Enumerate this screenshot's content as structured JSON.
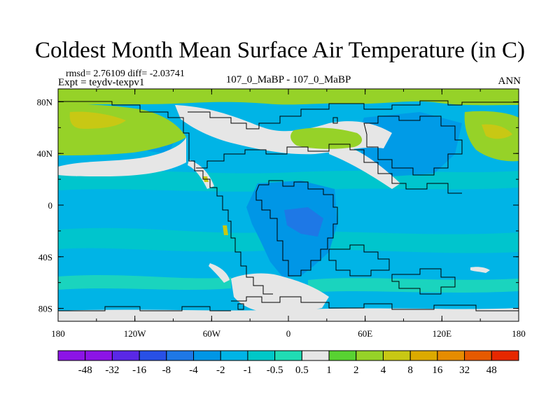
{
  "title": "Coldest Month Mean Surface Air Temperature (in C)",
  "stats_line": "rmsd= 2.76109 diff= -2.03741",
  "expt_line": "Expt = teydv-texpv1",
  "comparison_label": "107_0_MaBP - 107_0_MaBP",
  "season_label": "ANN",
  "map": {
    "lon_range": [
      -180,
      180
    ],
    "lat_range": [
      -90,
      90
    ],
    "lon_ticks": [
      "180",
      "120W",
      "60W",
      "0",
      "60E",
      "120E",
      "180"
    ],
    "lat_ticks": [
      "80N",
      "40N",
      "0",
      "40S",
      "80S"
    ],
    "ocean_color": "#00b4e6",
    "land_outline_color": "#000000"
  },
  "colorbar": {
    "labels": [
      "-48",
      "-32",
      "-16",
      "-8",
      "-4",
      "-2",
      "-1",
      "-0.5",
      "0.5",
      "1",
      "2",
      "4",
      "8",
      "16",
      "32",
      "48"
    ],
    "colors": [
      "#8c14e6",
      "#5a28e6",
      "#2850e6",
      "#1e78e6",
      "#0096e6",
      "#00b4e6",
      "#00c8c8",
      "#20dcb4",
      "#e6e6e6",
      "#58d232",
      "#96d228",
      "#c8c814",
      "#dcaa00",
      "#e68c00",
      "#e65a00",
      "#e62800"
    ]
  }
}
